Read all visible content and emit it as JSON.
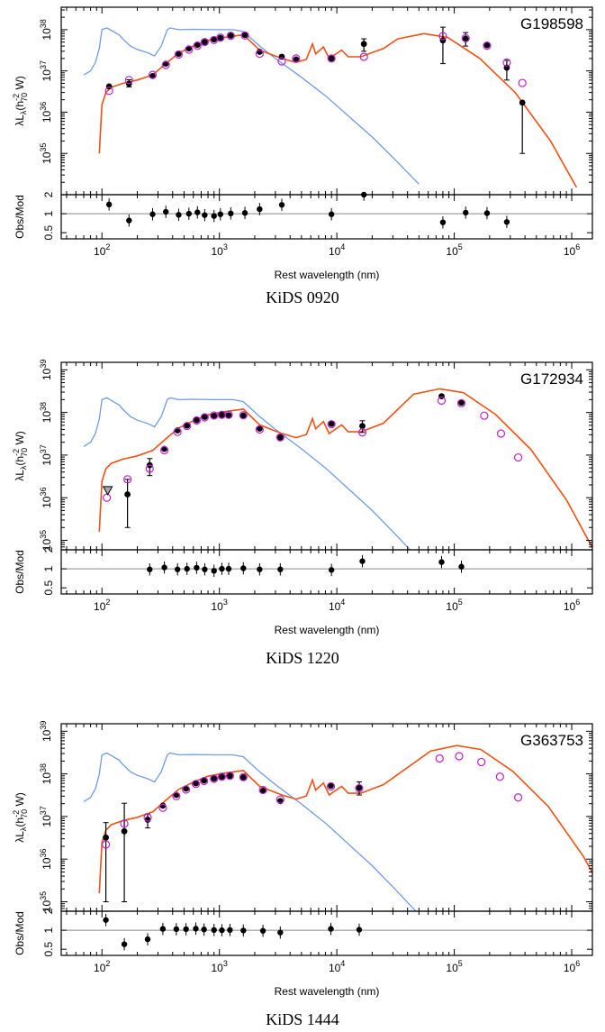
{
  "colors": {
    "model_total": "#f05010",
    "model_stellar": "#6f9be6",
    "observed": "#000000",
    "model_photometry": "#c020d0",
    "reference_line": "#888888"
  },
  "axes_text": {
    "ylabel_main": "λL",
    "ylabel_sub": "λ",
    "ylabel_h": "(h",
    "ylabel_h_sub": "70",
    "ylabel_h_sup": "-2",
    "ylabel_unit": " W)",
    "ylabel_ratio": "Obs/Mod",
    "xlabel": "Rest wavelength (nm)",
    "x_ticks": [
      "10",
      "10",
      "10",
      "10",
      "10",
      "10"
    ],
    "x_tick_exps": [
      "2",
      "3",
      "4",
      "5",
      "6"
    ]
  },
  "chart_data": [
    {
      "type": "scatter",
      "title": "G198598",
      "caption": "KiDS 0920",
      "xlabel": "Rest wavelength (nm)",
      "ylabel": "λLλ(h70^-2 W)",
      "xscale": "log",
      "yscale": "log",
      "xlim": [
        45,
        1500000
      ],
      "ylim": [
        1e+34,
        3.5e+38
      ],
      "y_ticks": [
        {
          "base": "10",
          "exp": "35",
          "value": 1e+35
        },
        {
          "base": "10",
          "exp": "36",
          "value": 1e+36
        },
        {
          "base": "10",
          "exp": "37",
          "value": 1e+37
        },
        {
          "base": "10",
          "exp": "38",
          "value": 1e+38
        }
      ],
      "ratio_ticks": [
        {
          "label": "2",
          "value": 2
        },
        {
          "label": "1",
          "value": 1
        },
        {
          "label": "0.5",
          "value": 0.5
        }
      ],
      "ratio_ylim": [
        0.4,
        2
      ],
      "series": [
        {
          "kind": "observed",
          "x": [
            115,
            170,
            270,
            350,
            450,
            550,
            650,
            750,
            900,
            1020,
            1250,
            1650,
            2200,
            3400,
            4500,
            9000,
            17000,
            80000,
            125000,
            190000,
            280000,
            380000
          ],
          "y": [
            4.2e+36,
            4.9e+36,
            7.5e+36,
            1.5e+37,
            2.6e+37,
            3.5e+37,
            4.3e+37,
            5e+37,
            5.8e+37,
            6.3e+37,
            7.2e+37,
            7.4e+37,
            2.9e+37,
            2.2e+37,
            1.9e+37,
            2e+37,
            4.5e+37,
            5.5e+37,
            6e+37,
            4.2e+37,
            1.2e+37,
            1.7e+36
          ],
          "yerr_lo": [
            0,
            8e+35,
            0,
            0,
            0,
            0,
            0,
            0,
            0,
            0,
            0,
            0,
            0,
            0,
            0,
            0,
            1.5e+37,
            4e+37,
            2e+37,
            0,
            6e+36,
            1.6e+36
          ],
          "yerr_hi": [
            0,
            1.2e+36,
            0,
            0,
            0,
            0,
            0,
            0,
            0,
            0,
            0,
            0,
            0,
            0,
            0,
            0,
            1.5e+37,
            6e+37,
            2.5e+37,
            0,
            6e+36,
            0
          ]
        },
        {
          "kind": "model_photometry",
          "x": [
            115,
            170,
            270,
            350,
            450,
            550,
            650,
            750,
            900,
            1020,
            1250,
            1650,
            2200,
            3400,
            4500,
            9000,
            17000,
            80000,
            125000,
            190000,
            280000,
            380000
          ],
          "y": [
            3.3e+36,
            6e+36,
            8e+36,
            1.4e+37,
            2.5e+37,
            3.3e+37,
            4.1e+37,
            5e+37,
            5.6e+37,
            6.4e+37,
            7.1e+37,
            7.2e+37,
            2.6e+37,
            1.7e+37,
            2e+37,
            2e+37,
            2.2e+37,
            7e+37,
            6.2e+37,
            4.1e+37,
            1.6e+37,
            5.1e+36
          ]
        },
        {
          "kind": "ratio",
          "x": [
            115,
            170,
            270,
            350,
            450,
            550,
            650,
            750,
            900,
            1020,
            1250,
            1650,
            2200,
            3400,
            9000,
            17000,
            80000,
            125000,
            190000,
            280000
          ],
          "y": [
            1.4,
            0.78,
            0.98,
            1.07,
            0.96,
            1.0,
            1.05,
            0.95,
            0.92,
            0.98,
            1.01,
            1.03,
            1.18,
            1.38,
            0.98,
            2.0,
            0.73,
            1.04,
            1.02,
            0.74
          ]
        }
      ]
    },
    {
      "type": "scatter",
      "title": "G172934",
      "caption": "KiDS 1220",
      "xlabel": "Rest wavelength (nm)",
      "ylabel": "λLλ(h70^-2 W)",
      "xscale": "log",
      "yscale": "log",
      "xlim": [
        45,
        1500000
      ],
      "ylim": [
        6e+34,
        1.5e+39
      ],
      "y_ticks": [
        {
          "base": "10",
          "exp": "35",
          "value": 1e+35
        },
        {
          "base": "10",
          "exp": "36",
          "value": 1e+36
        },
        {
          "base": "10",
          "exp": "37",
          "value": 1e+37
        },
        {
          "base": "10",
          "exp": "38",
          "value": 1e+38
        },
        {
          "base": "10",
          "exp": "39",
          "value": 1e+39
        }
      ],
      "ratio_ticks": [
        {
          "label": "2",
          "value": 2
        },
        {
          "label": "1",
          "value": 1
        },
        {
          "label": "0.5",
          "value": 0.5
        }
      ],
      "ratio_ylim": [
        0.4,
        2
      ],
      "series": [
        {
          "kind": "observed",
          "x": [
            165,
            255,
            340,
            440,
            530,
            640,
            750,
            900,
            1050,
            1200,
            1600,
            2200,
            3300,
            9000,
            16500,
            78000,
            115000
          ],
          "y": [
            1.2e+36,
            5.8e+36,
            1.4e+37,
            3.8e+37,
            4.9e+37,
            6.6e+37,
            7.9e+37,
            8.3e+37,
            8.8e+37,
            8.6e+37,
            8.4e+37,
            4.2e+37,
            2.6e+37,
            5.4e+37,
            4.8e+37,
            2.4e+38,
            1.7e+38
          ],
          "yerr_lo": [
            1e+36,
            2.5e+36,
            0,
            0,
            0,
            0,
            0,
            0,
            0,
            0,
            0,
            0,
            0,
            0,
            1.4e+37,
            0,
            0
          ],
          "yerr_hi": [
            1.5e+36,
            2.5e+36,
            0,
            0,
            0,
            0,
            0,
            0,
            0,
            0,
            0,
            0,
            0,
            0,
            1.6e+37,
            0,
            0
          ]
        },
        {
          "kind": "model_photometry",
          "x": [
            110,
            165,
            255,
            340,
            440,
            530,
            640,
            750,
            900,
            1050,
            1200,
            1600,
            2200,
            3300,
            9000,
            16500,
            78000,
            115000,
            180000,
            250000,
            350000
          ],
          "y": [
            1e+36,
            2.7e+36,
            4.8e+36,
            1.3e+37,
            3.5e+37,
            4.8e+37,
            6.5e+37,
            7.7e+37,
            8.5e+37,
            8.8e+37,
            8.8e+37,
            8.6e+37,
            4e+37,
            2.6e+37,
            5.3e+37,
            3.4e+37,
            1.9e+38,
            1.65e+38,
            8.4e+37,
            3.2e+37,
            8.8e+36
          ]
        },
        {
          "kind": "upper_limit",
          "x": [
            112
          ],
          "y": [
            1.5e+36
          ]
        },
        {
          "kind": "ratio",
          "x": [
            255,
            340,
            440,
            530,
            640,
            750,
            900,
            1050,
            1200,
            1600,
            2200,
            3300,
            9000,
            16500,
            78000,
            115000
          ],
          "y": [
            0.98,
            1.05,
            0.98,
            1.0,
            1.04,
            0.98,
            0.93,
            1.0,
            1.0,
            1.02,
            0.98,
            0.98,
            0.96,
            1.32,
            1.28,
            1.08
          ]
        }
      ]
    },
    {
      "type": "scatter",
      "title": "G363753",
      "caption": "KiDS 1444",
      "xlabel": "Rest wavelength (nm)",
      "ylabel": "λLλ(h70^-2 W)",
      "xscale": "log",
      "yscale": "log",
      "xlim": [
        45,
        1500000
      ],
      "ylim": [
        6e+34,
        1.5e+39
      ],
      "y_ticks": [
        {
          "base": "10",
          "exp": "35",
          "value": 1e+35
        },
        {
          "base": "10",
          "exp": "36",
          "value": 1e+36
        },
        {
          "base": "10",
          "exp": "37",
          "value": 1e+37
        },
        {
          "base": "10",
          "exp": "38",
          "value": 1e+38
        },
        {
          "base": "10",
          "exp": "39",
          "value": 1e+39
        }
      ],
      "ratio_ticks": [
        {
          "label": "2",
          "value": 2
        },
        {
          "label": "1",
          "value": 1
        },
        {
          "label": "0.5",
          "value": 0.5
        }
      ],
      "ratio_ylim": [
        0.4,
        2
      ],
      "series": [
        {
          "kind": "observed",
          "x": [
            108,
            155,
            245,
            330,
            430,
            520,
            630,
            740,
            900,
            1050,
            1230,
            1600,
            2350,
            3300,
            8900,
            15500
          ],
          "y": [
            3.2e+36,
            4.5e+36,
            8.4e+36,
            1.8e+37,
            3.2e+37,
            4.5e+37,
            6e+37,
            7e+37,
            7.8e+37,
            8.5e+37,
            9e+37,
            8.3e+37,
            4e+37,
            2.3e+37,
            5.3e+37,
            4.7e+37
          ],
          "yerr_lo": [
            3.1e+36,
            4.4e+36,
            3e+36,
            0,
            0,
            0,
            0,
            0,
            0,
            0,
            0,
            0,
            0,
            0,
            0,
            1.5e+37
          ],
          "yerr_hi": [
            4e+36,
            1.6e+37,
            3e+36,
            0,
            0,
            0,
            0,
            0,
            0,
            0,
            0,
            0,
            0,
            0,
            0,
            1.8e+37
          ]
        },
        {
          "kind": "model_photometry",
          "x": [
            108,
            155,
            245,
            330,
            430,
            520,
            630,
            740,
            900,
            1050,
            1230,
            1600,
            2350,
            3300,
            8900,
            15500,
            75000,
            110000,
            170000,
            245000,
            350000
          ],
          "y": [
            2.2e+36,
            6.8e+36,
            9.5e+36,
            1.6e+37,
            3e+37,
            4.3e+37,
            5.8e+37,
            6.8e+37,
            7.7e+37,
            8.6e+37,
            9e+37,
            8.4e+37,
            4.2e+37,
            2.5e+37,
            5.1e+37,
            4.6e+37,
            2.3e+38,
            2.6e+38,
            1.9e+38,
            8.6e+37,
            2.8e+37
          ]
        },
        {
          "kind": "ratio",
          "x": [
            108,
            155,
            245,
            330,
            430,
            520,
            630,
            740,
            900,
            1050,
            1230,
            1600,
            2350,
            3300,
            8900,
            15500
          ],
          "y": [
            1.45,
            0.6,
            0.72,
            1.05,
            1.04,
            1.04,
            1.06,
            1.03,
            1.01,
            1.0,
            1.01,
            0.99,
            0.98,
            0.92,
            1.05,
            1.02
          ]
        }
      ]
    }
  ]
}
